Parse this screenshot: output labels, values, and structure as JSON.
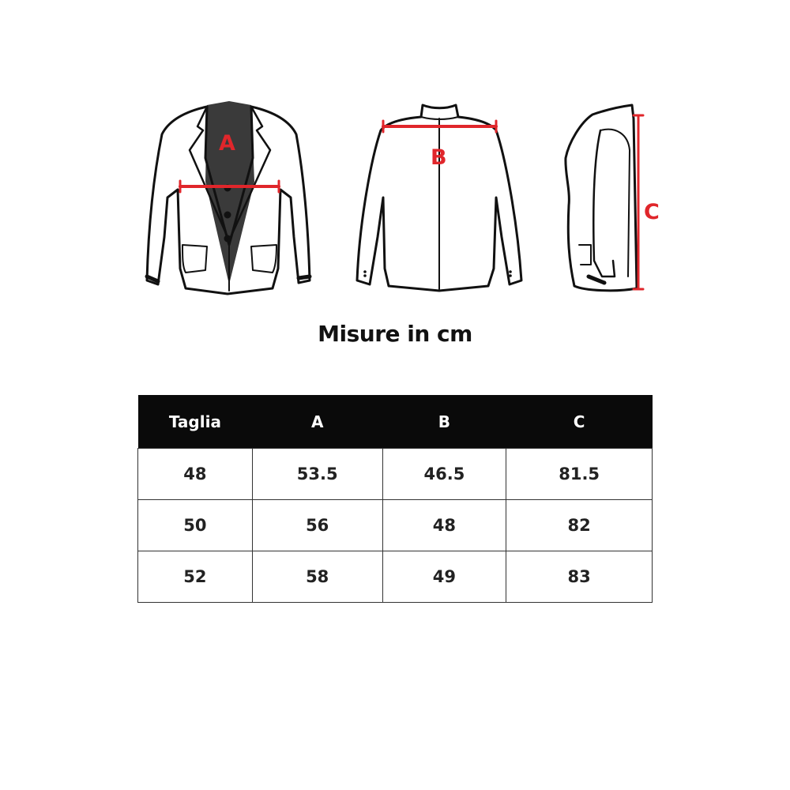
{
  "illustration": {
    "measure_labels": {
      "a": "A",
      "b": "B",
      "c": "C"
    },
    "measure_color": "#e0262b"
  },
  "title": "Misure in cm",
  "table": {
    "headers": [
      "Taglia",
      "A",
      "B",
      "C"
    ],
    "rows": [
      [
        "48",
        "53.5",
        "46.5",
        "81.5"
      ],
      [
        "50",
        "56",
        "48",
        "82"
      ],
      [
        "52",
        "58",
        "49",
        "83"
      ]
    ]
  }
}
